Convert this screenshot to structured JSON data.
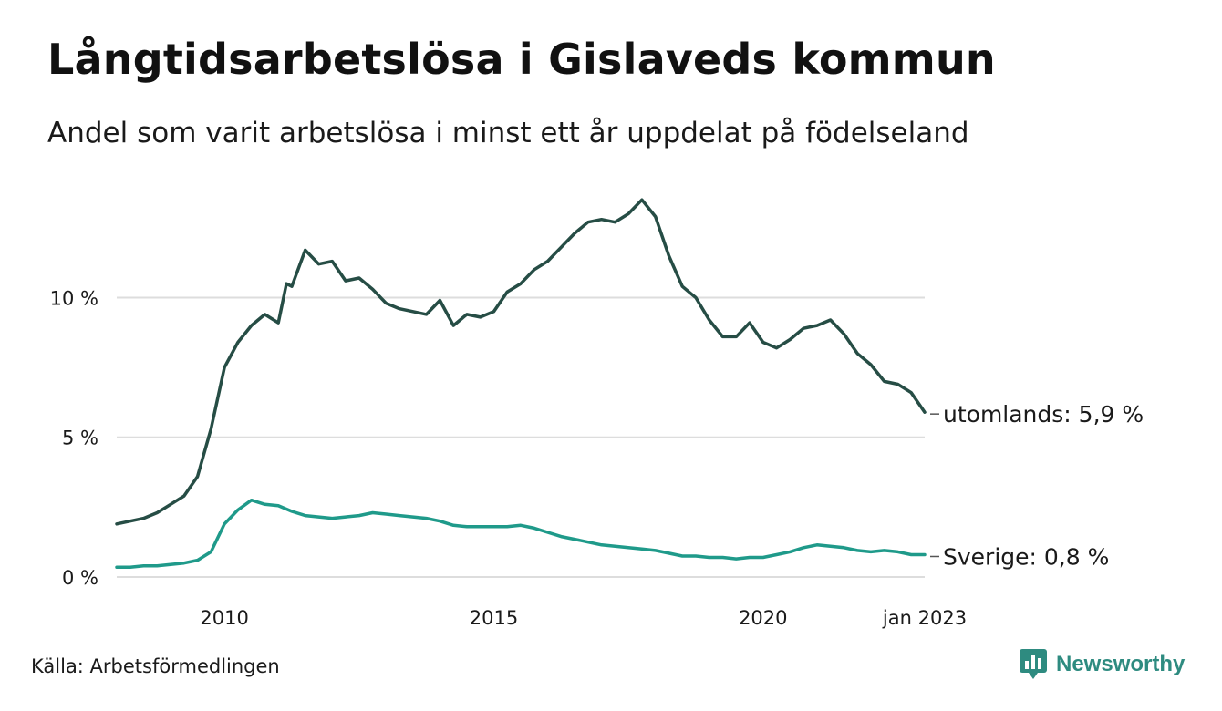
{
  "title": "Långtidsarbetslösa i Gislaveds kommun",
  "subtitle": "Andel som varit arbetslösa i minst ett år uppdelat på födelseland",
  "source": "Källa: Arbetsförmedlingen",
  "brand": {
    "name": "Newsworthy",
    "icon": "newsworthy-logo-icon",
    "color": "#2e8b80"
  },
  "chart_data": {
    "type": "line",
    "xlim": [
      2008.0,
      2023.0
    ],
    "ylim": [
      0,
      13.8
    ],
    "y_ticks": [
      {
        "value": 0,
        "label": "0 %"
      },
      {
        "value": 5,
        "label": "5 %"
      },
      {
        "value": 10,
        "label": "10 %"
      }
    ],
    "x_ticks": [
      {
        "value": 2010,
        "label": "2010"
      },
      {
        "value": 2015,
        "label": "2015"
      },
      {
        "value": 2020,
        "label": "2020"
      },
      {
        "value": 2023,
        "label": "jan 2023"
      }
    ],
    "grid": "horizontal",
    "series": [
      {
        "name": "utomlands",
        "label": "utomlands: 5,9 %",
        "color": "#264d45",
        "x": [
          2008.0,
          2008.25,
          2008.5,
          2008.75,
          2009.0,
          2009.25,
          2009.5,
          2009.75,
          2010.0,
          2010.25,
          2010.5,
          2010.75,
          2011.0,
          2011.15,
          2011.25,
          2011.5,
          2011.75,
          2012.0,
          2012.25,
          2012.5,
          2012.75,
          2013.0,
          2013.25,
          2013.5,
          2013.75,
          2014.0,
          2014.25,
          2014.5,
          2014.75,
          2015.0,
          2015.25,
          2015.5,
          2015.75,
          2016.0,
          2016.25,
          2016.5,
          2016.75,
          2017.0,
          2017.25,
          2017.5,
          2017.75,
          2018.0,
          2018.25,
          2018.5,
          2018.75,
          2019.0,
          2019.25,
          2019.5,
          2019.75,
          2020.0,
          2020.25,
          2020.5,
          2020.75,
          2021.0,
          2021.25,
          2021.5,
          2021.75,
          2022.0,
          2022.25,
          2022.5,
          2022.75,
          2023.0
        ],
        "values": [
          1.9,
          2.0,
          2.1,
          2.3,
          2.6,
          2.9,
          3.6,
          5.3,
          7.5,
          8.4,
          9.0,
          9.4,
          9.1,
          10.5,
          10.4,
          11.7,
          11.2,
          11.3,
          10.6,
          10.7,
          10.3,
          9.8,
          9.6,
          9.5,
          9.4,
          9.9,
          9.0,
          9.4,
          9.3,
          9.5,
          10.2,
          10.5,
          11.0,
          11.3,
          11.8,
          12.3,
          12.7,
          12.8,
          12.7,
          13.0,
          13.5,
          12.9,
          11.5,
          10.4,
          10.0,
          9.2,
          8.6,
          8.6,
          9.1,
          8.4,
          8.2,
          8.5,
          8.9,
          9.0,
          9.2,
          8.7,
          8.0,
          7.6,
          7.0,
          6.9,
          6.6,
          5.9
        ]
      },
      {
        "name": "Sverige",
        "label": "Sverige: 0,8 %",
        "color": "#1f9a8a",
        "x": [
          2008.0,
          2008.25,
          2008.5,
          2008.75,
          2009.0,
          2009.25,
          2009.5,
          2009.75,
          2010.0,
          2010.25,
          2010.5,
          2010.75,
          2011.0,
          2011.25,
          2011.5,
          2011.75,
          2012.0,
          2012.25,
          2012.5,
          2012.75,
          2013.0,
          2013.25,
          2013.5,
          2013.75,
          2014.0,
          2014.25,
          2014.5,
          2014.75,
          2015.0,
          2015.25,
          2015.5,
          2015.75,
          2016.0,
          2016.25,
          2016.5,
          2016.75,
          2017.0,
          2017.25,
          2017.5,
          2017.75,
          2018.0,
          2018.25,
          2018.5,
          2018.75,
          2019.0,
          2019.25,
          2019.5,
          2019.75,
          2020.0,
          2020.25,
          2020.5,
          2020.75,
          2021.0,
          2021.25,
          2021.5,
          2021.75,
          2022.0,
          2022.25,
          2022.5,
          2022.75,
          2023.0
        ],
        "values": [
          0.35,
          0.35,
          0.4,
          0.4,
          0.45,
          0.5,
          0.6,
          0.9,
          1.9,
          2.4,
          2.75,
          2.6,
          2.55,
          2.35,
          2.2,
          2.15,
          2.1,
          2.15,
          2.2,
          2.3,
          2.25,
          2.2,
          2.15,
          2.1,
          2.0,
          1.85,
          1.8,
          1.8,
          1.8,
          1.8,
          1.85,
          1.75,
          1.6,
          1.45,
          1.35,
          1.25,
          1.15,
          1.1,
          1.05,
          1.0,
          0.95,
          0.85,
          0.75,
          0.75,
          0.7,
          0.7,
          0.65,
          0.7,
          0.7,
          0.8,
          0.9,
          1.05,
          1.15,
          1.1,
          1.05,
          0.95,
          0.9,
          0.95,
          0.9,
          0.8,
          0.8
        ]
      }
    ]
  }
}
